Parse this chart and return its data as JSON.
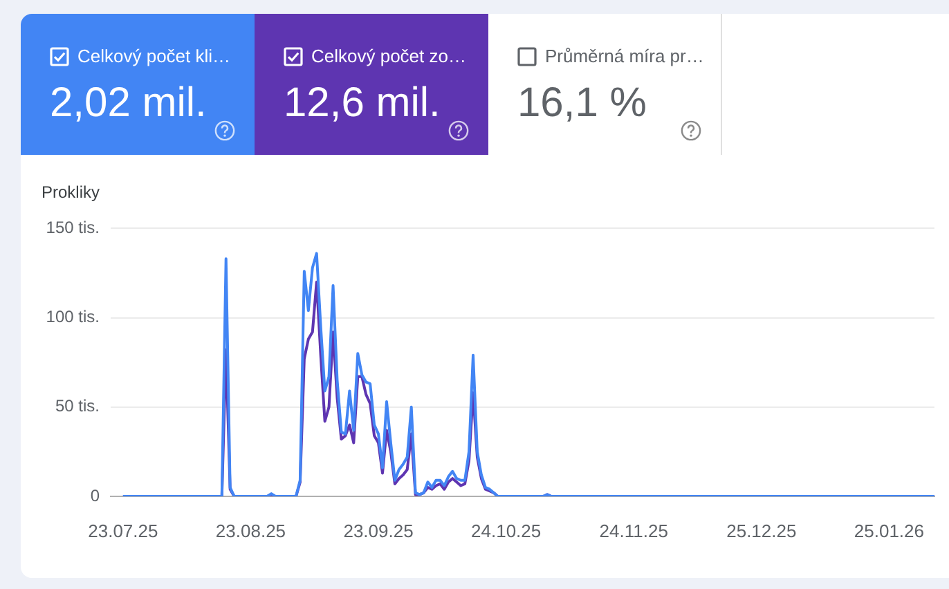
{
  "chart_data": [
    {
      "type": "other",
      "annotations": [
        "Celkový počet kli…",
        "2,02 mil.",
        "Celkový počet zo…",
        "12,6 mil.",
        "Průměrná míra pr…",
        "16,1 %"
      ]
    },
    {
      "type": "line",
      "ylabel": "Prokliky",
      "x": [
        "2025-07-23",
        "2025-08-16",
        "2025-08-17",
        "2025-08-18",
        "2025-08-19",
        "2025-08-27",
        "2025-08-28",
        "2025-08-29",
        "2025-09-02",
        "2025-09-03",
        "2025-09-04",
        "2025-09-05",
        "2025-09-06",
        "2025-09-07",
        "2025-09-08",
        "2025-09-09",
        "2025-09-10",
        "2025-09-11",
        "2025-09-12",
        "2025-09-13",
        "2025-09-14",
        "2025-09-15",
        "2025-09-16",
        "2025-09-17",
        "2025-09-18",
        "2025-09-19",
        "2025-09-20",
        "2025-09-21",
        "2025-09-22",
        "2025-09-23",
        "2025-09-24",
        "2025-09-25",
        "2025-09-26",
        "2025-09-27",
        "2025-09-28",
        "2025-09-29",
        "2025-09-30",
        "2025-10-01",
        "2025-10-02",
        "2025-10-03",
        "2025-10-04",
        "2025-10-05",
        "2025-10-06",
        "2025-10-07",
        "2025-10-08",
        "2025-10-09",
        "2025-10-10",
        "2025-10-11",
        "2025-10-12",
        "2025-10-13",
        "2025-10-14",
        "2025-10-15",
        "2025-10-16",
        "2025-10-17",
        "2025-10-18",
        "2025-10-19",
        "2025-10-20",
        "2025-10-21",
        "2025-10-22",
        "2025-11-02",
        "2025-11-03",
        "2025-11-04",
        "2026-02-05"
      ],
      "series": [
        {
          "color": "#4285f4",
          "values": [
            0,
            0,
            133,
            5,
            0,
            0,
            1.5,
            0,
            0,
            0,
            9,
            126,
            104,
            128,
            136,
            95,
            59,
            67,
            118,
            65,
            36,
            35,
            59,
            37,
            80,
            68,
            64,
            63,
            40,
            35,
            16,
            53,
            30,
            9,
            15,
            18,
            22,
            50,
            2,
            1,
            2,
            8,
            5,
            9,
            9,
            6,
            11,
            14,
            10,
            9,
            9,
            25,
            79,
            25,
            12,
            5,
            4,
            2,
            0,
            0,
            1,
            0,
            0
          ]
        },
        {
          "color": "#5e35b1",
          "values": [
            0,
            0,
            82,
            4,
            0,
            0,
            1,
            0,
            0,
            0,
            8,
            77,
            88,
            92,
            120,
            79,
            42,
            50,
            92,
            55,
            32,
            34,
            40,
            30,
            67,
            67,
            57,
            52,
            34,
            30,
            13,
            37,
            25,
            7,
            10,
            12,
            15,
            35,
            1,
            1,
            2,
            5,
            4,
            6,
            7,
            4,
            8,
            10,
            8,
            6,
            7,
            20,
            58,
            22,
            10,
            4,
            3,
            2,
            0,
            0,
            1,
            0,
            0
          ]
        }
      ],
      "xlim": [
        "2025-07-20",
        "2026-02-05"
      ],
      "xticks": [
        {
          "value": "2025-07-23",
          "label": "23.07.25"
        },
        {
          "value": "2025-08-23",
          "label": "23.08.25"
        },
        {
          "value": "2025-09-23",
          "label": "23.09.25"
        },
        {
          "value": "2025-10-24",
          "label": "24.10.25"
        },
        {
          "value": "2025-11-24",
          "label": "24.11.25"
        },
        {
          "value": "2025-12-25",
          "label": "25.12.25"
        },
        {
          "value": "2026-01-25",
          "label": "25.01.26"
        }
      ],
      "ylim": [
        0,
        150
      ],
      "yticks": [
        0,
        {
          "value": 50,
          "label": "50 tis."
        },
        {
          "value": 100,
          "label": "100 tis."
        },
        {
          "value": 150,
          "label": "150 tis."
        }
      ],
      "grid": "y"
    }
  ]
}
